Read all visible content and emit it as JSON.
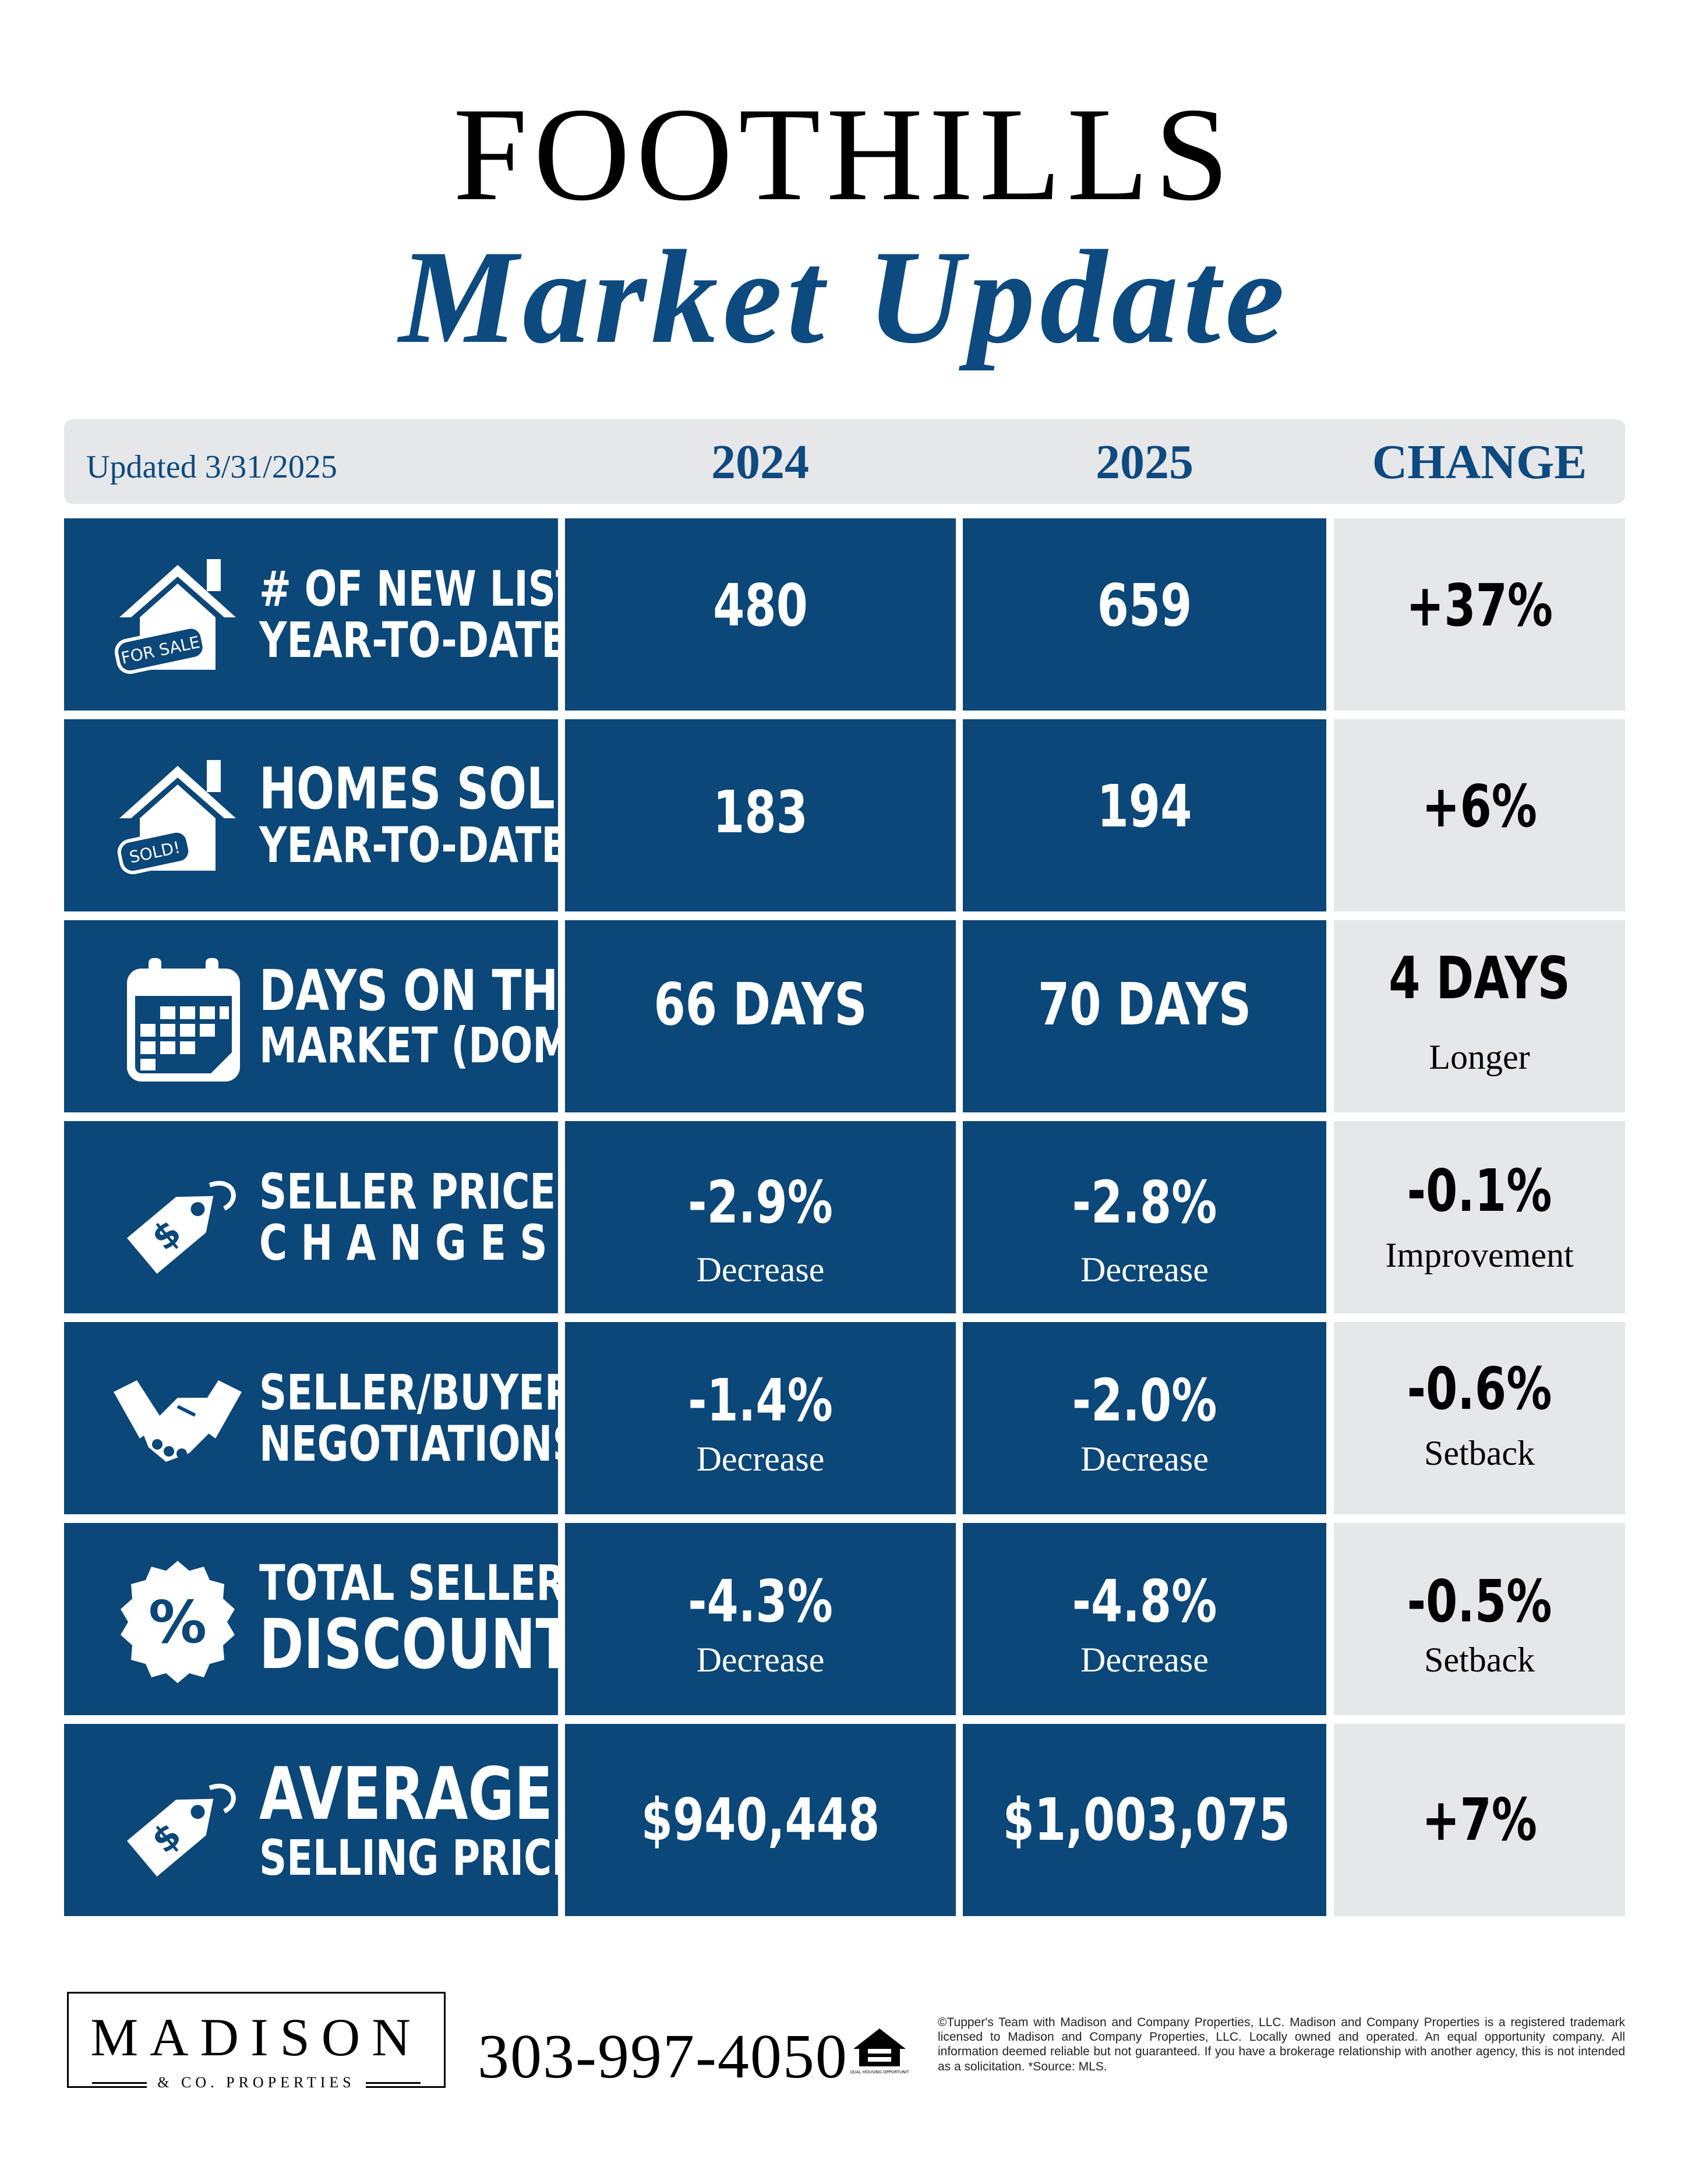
{
  "title": {
    "main": "FOOTHILLS",
    "sub": "Market Update"
  },
  "header": {
    "updated": "Updated 3/31/2025",
    "col_2024": "2024",
    "col_2025": "2025",
    "col_change": "CHANGE"
  },
  "rows": [
    {
      "icon": "house-for-sale-icon",
      "tag": "FOR SALE",
      "label_1": "# OF NEW LISTINGS",
      "label_2": "YEAR-TO-DATE",
      "v2024": "480",
      "s2024": "",
      "v2025": "659",
      "s2025": "",
      "change": "+37%",
      "change_sub": ""
    },
    {
      "icon": "house-sold-icon",
      "tag": "SOLD!",
      "label_1": "HOMES SOLD",
      "label_2": "YEAR-TO-DATE",
      "v2024": "183",
      "s2024": "",
      "v2025": "194",
      "s2025": "",
      "change": "+6%",
      "change_sub": ""
    },
    {
      "icon": "calendar-icon",
      "label_1": "DAYS ON THE",
      "label_2": "MARKET (DOM)",
      "v2024": "66 DAYS",
      "s2024": "",
      "v2025": "70 DAYS",
      "s2025": "",
      "change": "4 DAYS",
      "change_sub": "Longer"
    },
    {
      "icon": "price-tag-icon",
      "label_1": "SELLER PRICE",
      "label_2": "CHANGES",
      "v2024": "-2.9%",
      "s2024": "Decrease",
      "v2025": "-2.8%",
      "s2025": "Decrease",
      "change": "-0.1%",
      "change_sub": "Improvement"
    },
    {
      "icon": "handshake-icon",
      "label_1": "SELLER/BUYER",
      "label_2": "NEGOTIATIONS",
      "v2024": "-1.4%",
      "s2024": "Decrease",
      "v2025": "-2.0%",
      "s2025": "Decrease",
      "change": "-0.6%",
      "change_sub": "Setback"
    },
    {
      "icon": "percent-badge-icon",
      "label_1": "TOTAL SELLER",
      "label_2": "DISCOUNT",
      "v2024": "-4.3%",
      "s2024": "Decrease",
      "v2025": "-4.8%",
      "s2025": "Decrease",
      "change": "-0.5%",
      "change_sub": "Setback"
    },
    {
      "icon": "price-tag-icon",
      "label_1": "AVERAGE",
      "label_2": "SELLING PRICE",
      "v2024": "$940,448",
      "s2024": "",
      "v2025": "$1,003,075",
      "s2025": "",
      "change": "+7%",
      "change_sub": ""
    }
  ],
  "footer": {
    "logo_main": "MADISON",
    "logo_sub": "& CO. PROPERTIES",
    "phone": "303-997-4050",
    "eho_text": "EQUAL HOUSING OPPORTUNITY",
    "legal": "©Tupper's Team with Madison and Company Properties, LLC. Madison and Company Properties is a registered trademark licensed to Madison and Company Properties, LLC. Locally owned and operated. An equal opportunity company. All information deemed reliable but not guaranteed. If you have a brokerage relationship with another agency, this is not intended as a solicitation. *Source: MLS."
  },
  "colors": {
    "navy": "#0b4778",
    "title_blue": "#0d4a80",
    "gray": "#e6e7e9"
  }
}
